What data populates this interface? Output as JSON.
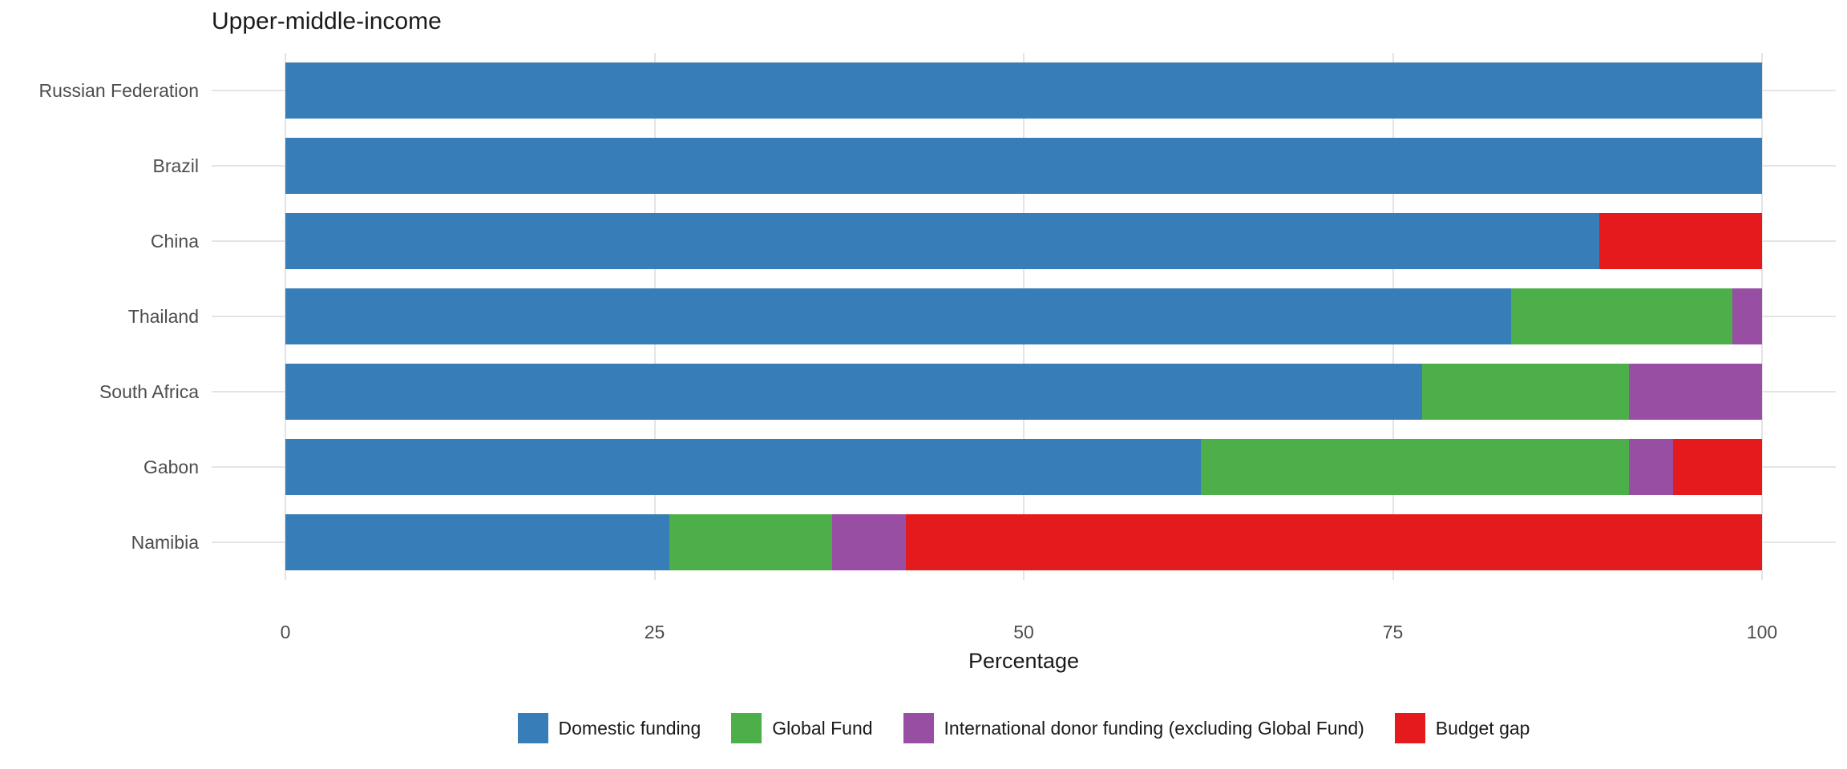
{
  "chart_data": {
    "type": "bar",
    "orientation": "horizontal",
    "stacked": true,
    "title": "Upper-middle-income",
    "xlabel": "Percentage",
    "ylabel": "",
    "categories": [
      "Russian Federation",
      "Brazil",
      "China",
      "Thailand",
      "South Africa",
      "Gabon",
      "Namibia"
    ],
    "series": [
      {
        "name": "Domestic funding",
        "color": "#377eb8",
        "values": [
          100,
          100,
          89,
          83,
          77,
          62,
          26
        ]
      },
      {
        "name": "Global Fund",
        "color": "#4daf4a",
        "values": [
          0,
          0,
          0,
          15,
          14,
          29,
          11
        ]
      },
      {
        "name": "International donor funding (excluding Global Fund)",
        "color": "#984ea3",
        "values": [
          0,
          0,
          0,
          2,
          9,
          3,
          5
        ]
      },
      {
        "name": "Budget gap",
        "color": "#e41a1c",
        "values": [
          0,
          0,
          11,
          0,
          0,
          6,
          58
        ]
      }
    ],
    "xlim": [
      0,
      100
    ],
    "xticks": [
      0,
      25,
      50,
      75,
      100
    ],
    "grid": true,
    "legend_position": "bottom",
    "gridline_color": "#e4e4e4",
    "axis_text_color": "#4d4d4d",
    "title_color": "#1a1a1a",
    "background_color": "#ffffff"
  }
}
